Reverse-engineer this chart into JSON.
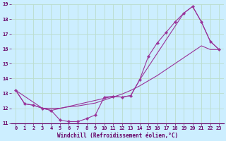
{
  "xlabel": "Windchill (Refroidissement éolien,°C)",
  "bg_color": "#cceeff",
  "grid_color": "#bbddcc",
  "line_color": "#993399",
  "xlim": [
    -0.5,
    23.5
  ],
  "ylim": [
    11,
    19
  ],
  "xticks": [
    0,
    1,
    2,
    3,
    4,
    5,
    6,
    7,
    8,
    9,
    10,
    11,
    12,
    13,
    14,
    15,
    16,
    17,
    18,
    19,
    20,
    21,
    22,
    23
  ],
  "yticks": [
    11,
    12,
    13,
    14,
    15,
    16,
    17,
    18,
    19
  ],
  "series1_x": [
    0,
    1,
    2,
    3,
    4,
    5,
    6,
    7,
    8,
    9,
    10,
    11,
    12,
    13,
    14,
    15,
    16,
    17,
    18,
    19,
    20,
    21,
    22,
    23
  ],
  "series1_y": [
    13.2,
    12.3,
    12.2,
    12.0,
    11.85,
    11.2,
    11.1,
    11.1,
    11.3,
    11.55,
    12.75,
    12.8,
    12.75,
    12.85,
    13.9,
    15.5,
    16.4,
    17.1,
    17.8,
    18.4,
    18.85,
    17.8,
    16.5,
    15.95
  ],
  "series2_x": [
    0,
    1,
    2,
    3,
    4,
    5,
    6,
    7,
    8,
    9,
    10,
    11,
    12,
    13,
    14,
    15,
    16,
    17,
    18,
    19,
    20,
    21,
    22,
    23
  ],
  "series2_y": [
    13.2,
    12.3,
    12.2,
    12.0,
    12.0,
    12.0,
    12.1,
    12.15,
    12.25,
    12.35,
    12.55,
    12.75,
    12.95,
    13.2,
    13.5,
    13.85,
    14.2,
    14.6,
    15.0,
    15.4,
    15.8,
    16.2,
    15.95,
    15.95
  ],
  "series3_x": [
    0,
    3,
    4,
    11,
    12,
    13,
    14,
    19,
    20,
    21,
    22,
    23
  ],
  "series3_y": [
    13.2,
    12.0,
    11.85,
    12.8,
    12.75,
    12.85,
    13.9,
    18.4,
    18.85,
    17.8,
    16.5,
    15.95
  ]
}
